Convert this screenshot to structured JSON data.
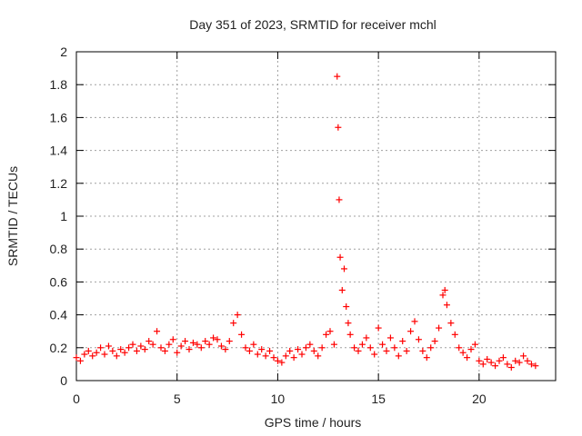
{
  "chart_data": {
    "type": "scatter",
    "title": "Day 351 of 2023, SRMTID for receiver mchl",
    "xlabel": "GPS time / hours",
    "ylabel": "SRMTID / TECUs",
    "xlim": [
      0,
      23.8
    ],
    "ylim": [
      0,
      2
    ],
    "xticks": [
      0,
      5,
      10,
      15,
      20
    ],
    "yticks": [
      0,
      0.2,
      0.4,
      0.6,
      0.8,
      1,
      1.2,
      1.4,
      1.6,
      1.8,
      2
    ],
    "grid": true,
    "marker": "+",
    "series_color": "#ff0000",
    "series": [
      {
        "name": "SRMTID",
        "x": [
          0.0,
          0.2,
          0.4,
          0.6,
          0.8,
          1.0,
          1.2,
          1.4,
          1.6,
          1.8,
          2.0,
          2.2,
          2.4,
          2.6,
          2.8,
          3.0,
          3.2,
          3.4,
          3.6,
          3.8,
          4.0,
          4.2,
          4.4,
          4.6,
          4.8,
          5.0,
          5.2,
          5.4,
          5.6,
          5.8,
          6.0,
          6.2,
          6.4,
          6.6,
          6.8,
          7.0,
          7.2,
          7.4,
          7.6,
          7.8,
          8.0,
          8.2,
          8.4,
          8.6,
          8.8,
          9.0,
          9.2,
          9.4,
          9.6,
          9.8,
          10.0,
          10.2,
          10.4,
          10.6,
          10.8,
          11.0,
          11.2,
          11.4,
          11.6,
          11.8,
          12.0,
          12.2,
          12.4,
          12.6,
          12.8,
          12.95,
          13.0,
          13.05,
          13.1,
          13.2,
          13.3,
          13.4,
          13.5,
          13.6,
          13.8,
          14.0,
          14.2,
          14.4,
          14.6,
          14.8,
          15.0,
          15.2,
          15.4,
          15.6,
          15.8,
          16.0,
          16.2,
          16.4,
          16.6,
          16.8,
          17.0,
          17.2,
          17.4,
          17.6,
          17.8,
          18.0,
          18.2,
          18.3,
          18.4,
          18.6,
          18.8,
          19.0,
          19.2,
          19.4,
          19.6,
          19.8,
          20.0,
          20.2,
          20.4,
          20.6,
          20.8,
          21.0,
          21.2,
          21.4,
          21.6,
          21.8,
          22.0,
          22.2,
          22.4,
          22.6,
          22.8
        ],
        "y": [
          0.14,
          0.12,
          0.16,
          0.18,
          0.15,
          0.17,
          0.2,
          0.16,
          0.21,
          0.18,
          0.15,
          0.19,
          0.17,
          0.2,
          0.22,
          0.18,
          0.21,
          0.19,
          0.24,
          0.22,
          0.3,
          0.2,
          0.18,
          0.22,
          0.25,
          0.17,
          0.21,
          0.24,
          0.19,
          0.23,
          0.22,
          0.2,
          0.24,
          0.22,
          0.26,
          0.25,
          0.21,
          0.19,
          0.24,
          0.35,
          0.4,
          0.28,
          0.2,
          0.18,
          0.22,
          0.16,
          0.19,
          0.15,
          0.18,
          0.14,
          0.12,
          0.11,
          0.15,
          0.18,
          0.14,
          0.19,
          0.16,
          0.2,
          0.22,
          0.18,
          0.15,
          0.2,
          0.28,
          0.3,
          0.22,
          1.85,
          1.54,
          1.1,
          0.75,
          0.55,
          0.68,
          0.45,
          0.35,
          0.28,
          0.2,
          0.18,
          0.22,
          0.26,
          0.2,
          0.16,
          0.32,
          0.22,
          0.18,
          0.26,
          0.2,
          0.15,
          0.24,
          0.18,
          0.3,
          0.36,
          0.25,
          0.18,
          0.14,
          0.2,
          0.24,
          0.32,
          0.52,
          0.55,
          0.46,
          0.35,
          0.28,
          0.2,
          0.17,
          0.14,
          0.19,
          0.22,
          0.12,
          0.1,
          0.13,
          0.11,
          0.09,
          0.12,
          0.14,
          0.1,
          0.08,
          0.12,
          0.11,
          0.15,
          0.12,
          0.1,
          0.09
        ]
      }
    ]
  }
}
